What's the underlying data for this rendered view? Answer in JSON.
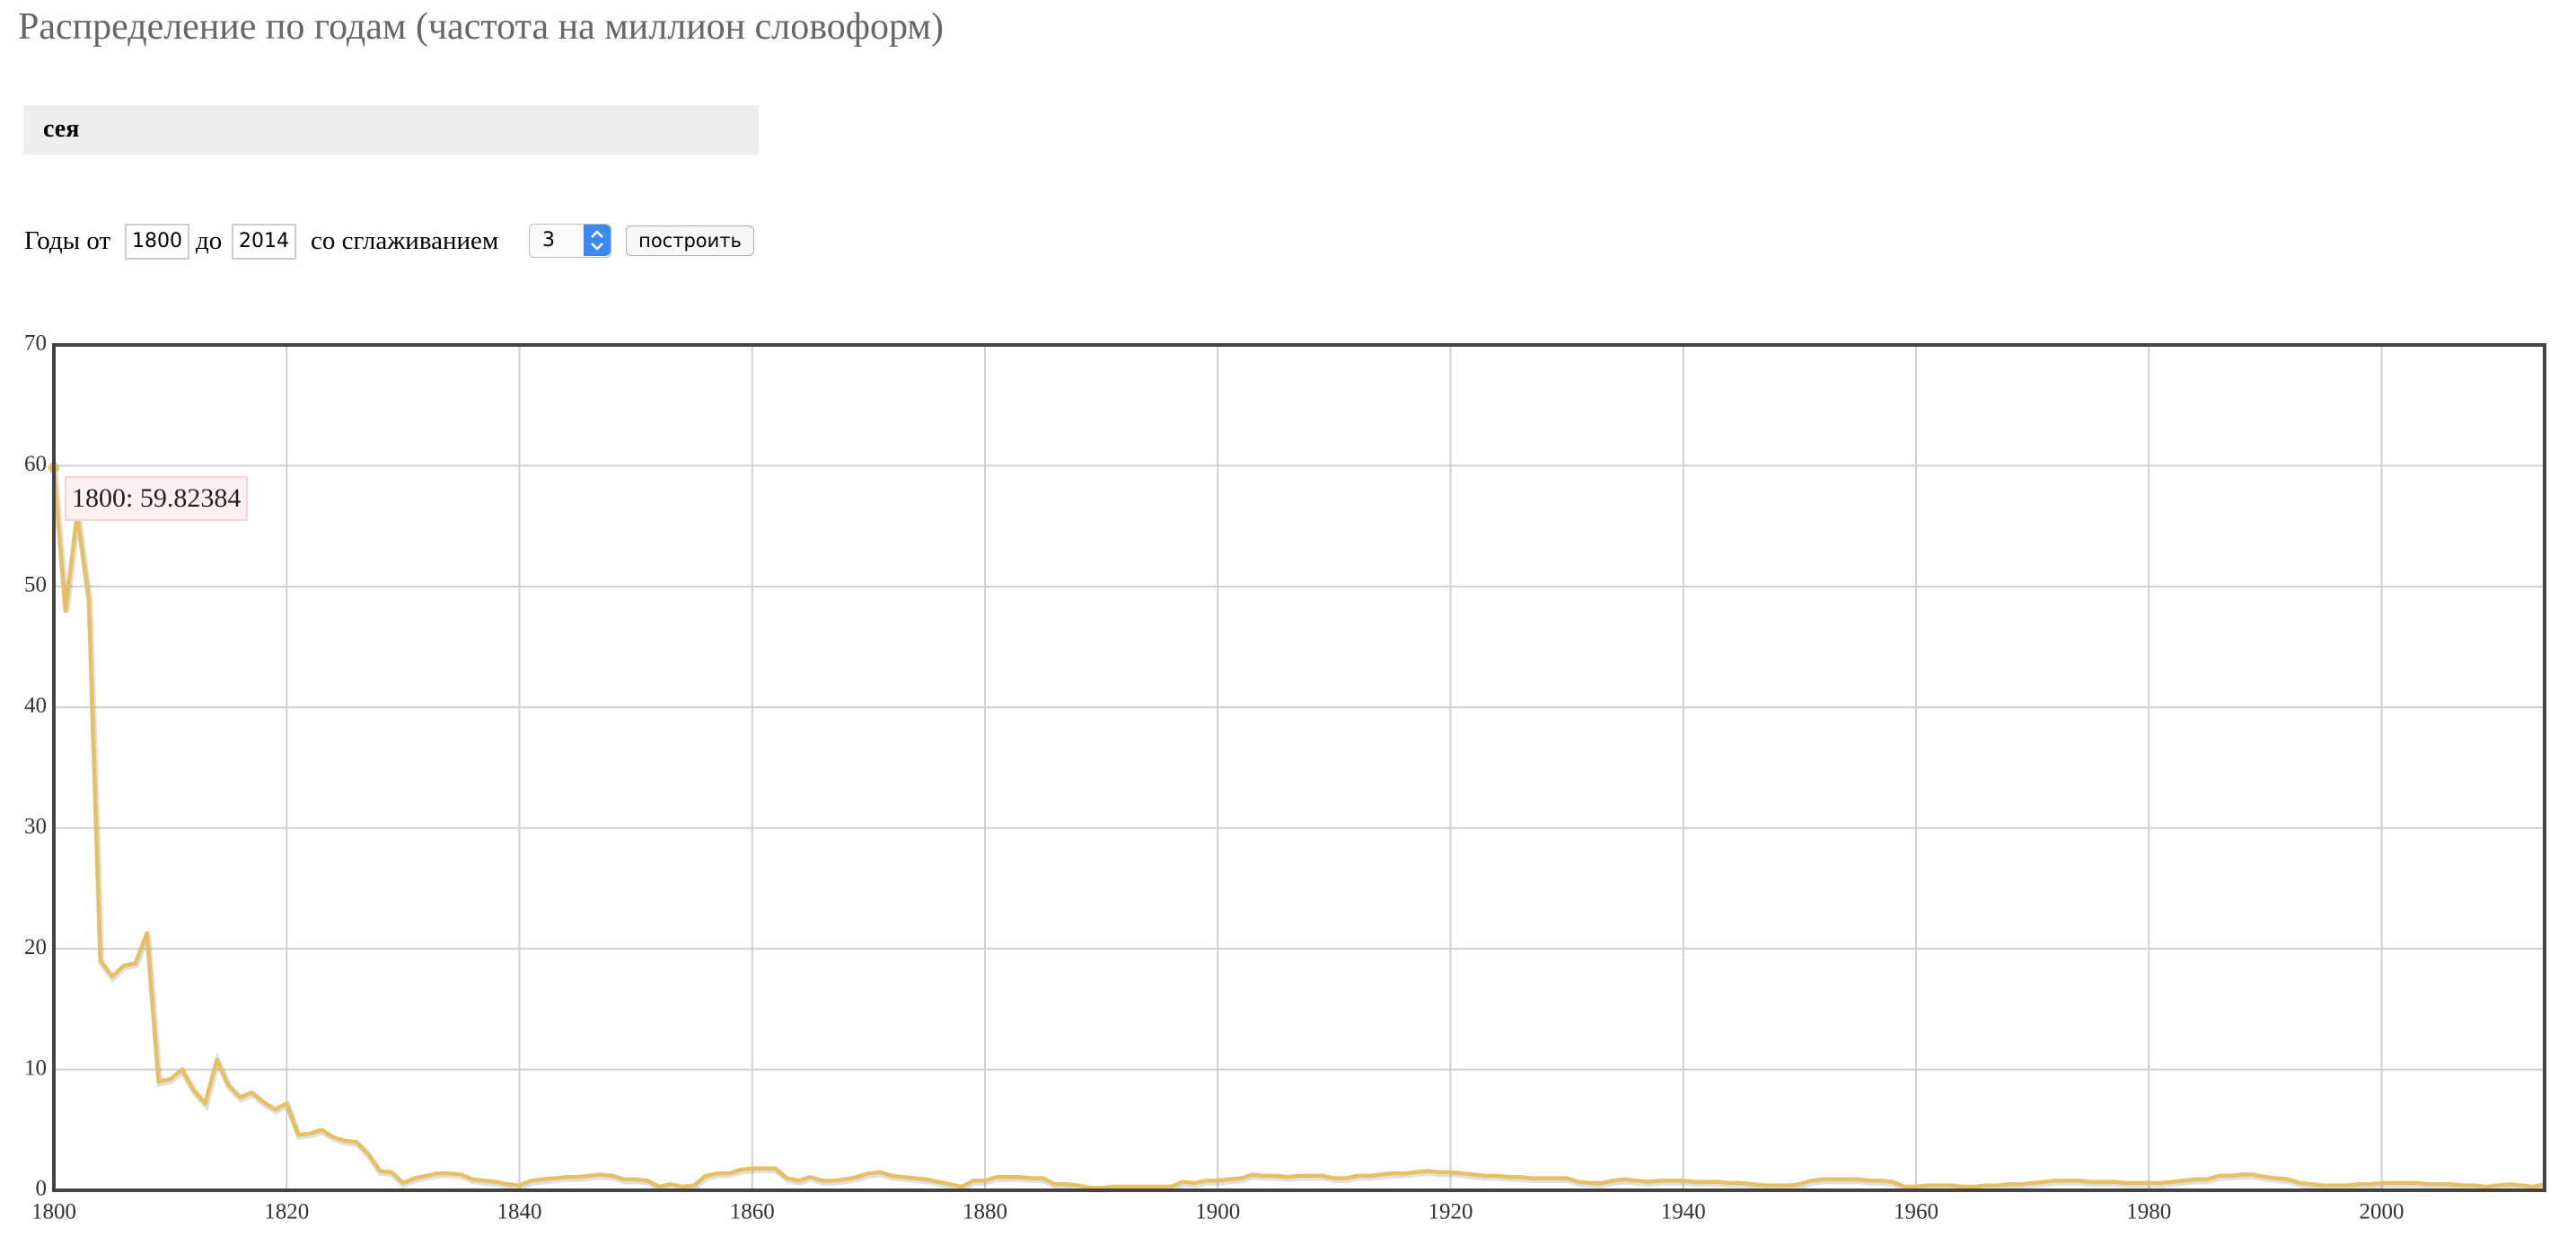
{
  "header": {
    "title": "Распределение по годам (частота на миллион словоформ)"
  },
  "query": "сея",
  "form": {
    "from_label": "Годы от",
    "from_value": "1800",
    "to_label": "до",
    "to_value": "2014",
    "smooth_label": "со сглаживанием",
    "smooth_value": "3",
    "button": "построить"
  },
  "chart_data": {
    "type": "line",
    "color": "#e6c062",
    "grid": true,
    "tooltip": "1800: 59.82384",
    "xlim": [
      1800,
      2014
    ],
    "ylim": [
      0,
      70
    ],
    "xticks": [
      1800,
      1820,
      1840,
      1860,
      1880,
      1900,
      1920,
      1940,
      1960,
      1980,
      2000
    ],
    "yticks": [
      0,
      10,
      20,
      30,
      40,
      50,
      60,
      70
    ],
    "x": [
      1800,
      1801,
      1802,
      1803,
      1804,
      1805,
      1806,
      1807,
      1808,
      1809,
      1810,
      1811,
      1812,
      1813,
      1814,
      1815,
      1816,
      1817,
      1818,
      1819,
      1820,
      1821,
      1822,
      1823,
      1824,
      1825,
      1826,
      1827,
      1828,
      1829,
      1830,
      1831,
      1832,
      1833,
      1834,
      1835,
      1836,
      1837,
      1838,
      1839,
      1840,
      1841,
      1842,
      1843,
      1844,
      1845,
      1846,
      1847,
      1848,
      1849,
      1850,
      1851,
      1852,
      1853,
      1854,
      1855,
      1856,
      1857,
      1858,
      1859,
      1860,
      1861,
      1862,
      1863,
      1864,
      1865,
      1866,
      1867,
      1868,
      1869,
      1870,
      1871,
      1872,
      1873,
      1874,
      1875,
      1876,
      1877,
      1878,
      1879,
      1880,
      1881,
      1882,
      1883,
      1884,
      1885,
      1886,
      1887,
      1888,
      1889,
      1890,
      1891,
      1892,
      1893,
      1894,
      1895,
      1896,
      1897,
      1898,
      1899,
      1900,
      1901,
      1902,
      1903,
      1904,
      1905,
      1906,
      1907,
      1908,
      1909,
      1910,
      1911,
      1912,
      1913,
      1914,
      1915,
      1916,
      1917,
      1918,
      1919,
      1920,
      1921,
      1922,
      1923,
      1924,
      1925,
      1926,
      1927,
      1928,
      1929,
      1930,
      1931,
      1932,
      1933,
      1934,
      1935,
      1936,
      1937,
      1938,
      1939,
      1940,
      1941,
      1942,
      1943,
      1944,
      1945,
      1946,
      1947,
      1948,
      1949,
      1950,
      1951,
      1952,
      1953,
      1954,
      1955,
      1956,
      1957,
      1958,
      1959,
      1960,
      1961,
      1962,
      1963,
      1964,
      1965,
      1966,
      1967,
      1968,
      1969,
      1970,
      1971,
      1972,
      1973,
      1974,
      1975,
      1976,
      1977,
      1978,
      1979,
      1980,
      1981,
      1982,
      1983,
      1984,
      1985,
      1986,
      1987,
      1988,
      1989,
      1990,
      1991,
      1992,
      1993,
      1994,
      1995,
      1996,
      1997,
      1998,
      1999,
      2000,
      2001,
      2002,
      2003,
      2004,
      2005,
      2006,
      2007,
      2008,
      2009,
      2010,
      2011,
      2012,
      2013,
      2014
    ],
    "values": [
      59.82384,
      48,
      56,
      49,
      19,
      17.7,
      18.6,
      18.8,
      21.3,
      9,
      9.2,
      10,
      8.3,
      7.2,
      10.8,
      8.7,
      7.7,
      8.1,
      7.3,
      6.7,
      7.2,
      4.6,
      4.7,
      5,
      4.4,
      4.1,
      4,
      3,
      1.6,
      1.5,
      0.6,
      1,
      1.2,
      1.4,
      1.4,
      1.3,
      0.9,
      0.8,
      0.7,
      0.5,
      0.4,
      0.8,
      0.9,
      1,
      1.1,
      1.1,
      1.2,
      1.3,
      1.2,
      0.9,
      0.9,
      0.8,
      0.3,
      0.5,
      0.3,
      0.4,
      1.2,
      1.4,
      1.4,
      1.7,
      1.8,
      1.8,
      1.8,
      1,
      0.8,
      1.1,
      0.8,
      0.8,
      0.9,
      1.1,
      1.4,
      1.5,
      1.2,
      1.1,
      1,
      0.9,
      0.7,
      0.5,
      0.3,
      0.8,
      0.8,
      1.1,
      1.1,
      1.1,
      1,
      1,
      0.5,
      0.5,
      0.4,
      0.2,
      0.2,
      0.3,
      0.3,
      0.3,
      0.3,
      0.3,
      0.3,
      0.7,
      0.6,
      0.8,
      0.8,
      0.9,
      1,
      1.3,
      1.2,
      1.2,
      1.1,
      1.2,
      1.2,
      1.2,
      1,
      1,
      1.2,
      1.2,
      1.3,
      1.4,
      1.4,
      1.5,
      1.6,
      1.5,
      1.5,
      1.4,
      1.3,
      1.2,
      1.2,
      1.1,
      1.1,
      1,
      1,
      1,
      1,
      0.7,
      0.6,
      0.6,
      0.8,
      0.9,
      0.8,
      0.7,
      0.8,
      0.8,
      0.8,
      0.7,
      0.7,
      0.7,
      0.6,
      0.6,
      0.5,
      0.4,
      0.4,
      0.4,
      0.5,
      0.8,
      0.9,
      0.9,
      0.9,
      0.9,
      0.8,
      0.8,
      0.7,
      0.3,
      0.3,
      0.4,
      0.4,
      0.4,
      0.3,
      0.3,
      0.4,
      0.4,
      0.5,
      0.5,
      0.6,
      0.7,
      0.8,
      0.8,
      0.8,
      0.7,
      0.7,
      0.7,
      0.6,
      0.6,
      0.6,
      0.6,
      0.7,
      0.8,
      0.9,
      0.9,
      1.2,
      1.2,
      1.3,
      1.3,
      1.1,
      1,
      0.9,
      0.6,
      0.5,
      0.4,
      0.4,
      0.4,
      0.5,
      0.5,
      0.6,
      0.6,
      0.6,
      0.6,
      0.5,
      0.5,
      0.5,
      0.4,
      0.4,
      0.3,
      0.4,
      0.5,
      0.4,
      0.3,
      0.5
    ]
  }
}
